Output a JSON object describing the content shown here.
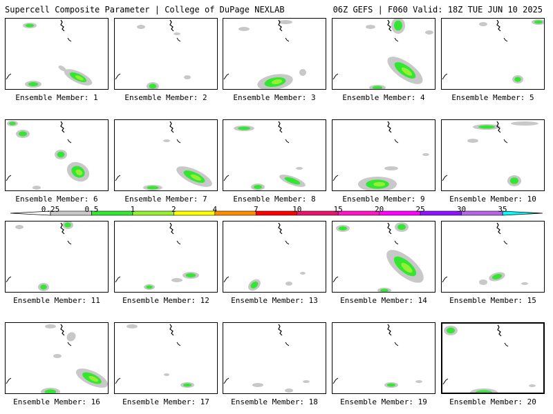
{
  "header": {
    "title": "Supercell Composite Parameter | College of DuPage NEXLAB",
    "run_info": "06Z GEFS | F060 Valid: 18Z TUE JUN 10 2025"
  },
  "legend": {
    "labels": [
      "0.25",
      "0.5",
      "1",
      "2",
      "4",
      "7",
      "10",
      "15",
      "20",
      "25",
      "30",
      "35"
    ],
    "colors": [
      "#c8c8c8",
      "#32e632",
      "#96f032",
      "#ffff00",
      "#ff8c00",
      "#ff0000",
      "#e6146e",
      "#ff14c8",
      "#ff00ff",
      "#8c14ff",
      "#b464e6",
      "#00ffff"
    ]
  },
  "panels": [
    {
      "label": "Ensemble Member: 1"
    },
    {
      "label": "Ensemble Member: 2"
    },
    {
      "label": "Ensemble Member: 3"
    },
    {
      "label": "Ensemble Member: 4"
    },
    {
      "label": "Ensemble Member: 5"
    },
    {
      "label": "Ensemble Member: 6"
    },
    {
      "label": "Ensemble Member: 7"
    },
    {
      "label": "Ensemble Member: 8"
    },
    {
      "label": "Ensemble Member: 9"
    },
    {
      "label": "Ensemble Member: 10"
    },
    {
      "label": "Ensemble Member: 11"
    },
    {
      "label": "Ensemble Member: 12"
    },
    {
      "label": "Ensemble Member: 13"
    },
    {
      "label": "Ensemble Member: 14"
    },
    {
      "label": "Ensemble Member: 15"
    },
    {
      "label": "Ensemble Member: 16"
    },
    {
      "label": "Ensemble Member: 17"
    },
    {
      "label": "Ensemble Member: 18"
    },
    {
      "label": "Ensemble Member: 19"
    },
    {
      "label": "Ensemble Member: 20",
      "selected": true
    }
  ]
}
